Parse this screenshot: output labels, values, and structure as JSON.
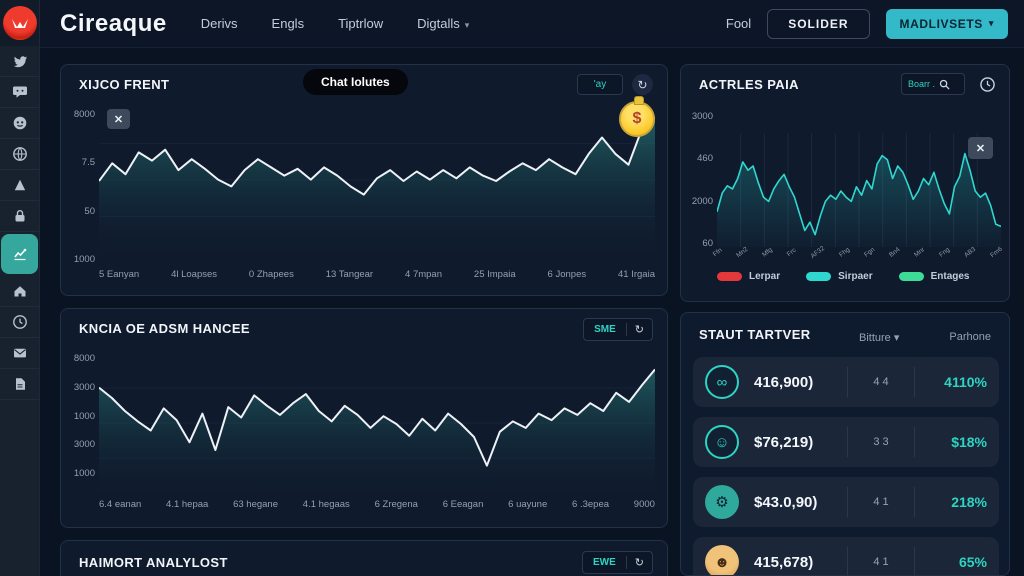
{
  "topbar": {
    "logo": "Cireaque",
    "nav": [
      "Derivs",
      "Engls",
      "Tiptrlow",
      "Digtalls"
    ],
    "caret": "▾",
    "right_text": "Fool",
    "outline_button": "SOLIDER",
    "primary_button": "MADLIVSETS"
  },
  "sidebar": {
    "items": [
      "twitter",
      "chat",
      "discord",
      "community",
      "triangle",
      "lock",
      "charts",
      "home",
      "clock",
      "mail",
      "report"
    ]
  },
  "panels": {
    "price": {
      "title": "XIJCO FRENT",
      "tooltip": "Chat Iolutes",
      "range": "'ay",
      "refresh": "↻",
      "close": "✕",
      "badge": "$"
    },
    "active": {
      "title": "ACTRLES PAIA",
      "search": "Boarr .",
      "close": "✕",
      "legend": [
        {
          "label": "Lerpar",
          "color": "#e5383b"
        },
        {
          "label": "Sirpaer",
          "color": "#2fd8cf"
        },
        {
          "label": "Entages",
          "color": "#3ddc97"
        }
      ]
    },
    "balance": {
      "title": "KNCIA OE ADSM HANCEE",
      "button": "SME",
      "refresh": "↻"
    },
    "stats": {
      "title": "STAUT TARTVER",
      "filter": "Bitture",
      "caret": "▾",
      "col": "Parhone",
      "rows": [
        {
          "value": "416,900)",
          "mid": "4 4",
          "change": "4110%",
          "icon": "infinity"
        },
        {
          "value": "$76,219)",
          "mid": "3 3",
          "change": "$18%",
          "icon": "face"
        },
        {
          "value": "$43.0,90)",
          "mid": "4 1",
          "change": "218%",
          "icon": "gear"
        },
        {
          "value": "415,678)",
          "mid": "4 1",
          "change": "65%",
          "icon": "avatar"
        }
      ],
      "row_icons": {
        "infinity": "∞",
        "face": "☺",
        "gear": "⚙",
        "avatar": "☻"
      }
    },
    "report": {
      "title": "HAIMORT ANALYLOST",
      "button": "EWE",
      "refresh": "↻"
    }
  },
  "chart_data": [
    {
      "type": "area",
      "title": "XIJCO FRENT",
      "values": [
        50,
        63,
        55,
        71,
        65,
        73,
        58,
        66,
        59,
        51,
        46,
        58,
        66,
        60,
        54,
        59,
        51,
        60,
        54,
        46,
        40,
        52,
        58,
        50,
        57,
        51,
        58,
        52,
        60,
        54,
        50,
        57,
        63,
        58,
        66,
        60,
        55,
        70,
        82,
        70,
        62,
        88,
        97
      ],
      "ylim": [
        0,
        100
      ],
      "grid": "h",
      "y_ticks": [
        "8000",
        "7.5",
        "50",
        "1000"
      ],
      "x_ticks": [
        "5 Eanyan",
        "4l Loapses",
        "0 Zhapees",
        "13 Tangear",
        "4 7mpan",
        "25 Impaia",
        "6 Jonpes",
        "41 Irgaia"
      ],
      "line_color": "#eef2f7",
      "fill_top": "rgba(45,150,140,0.55)",
      "fill_bottom": "rgba(16,40,56,0.03)"
    },
    {
      "type": "area",
      "title": "ACTRLES PAIA",
      "values": [
        30,
        48,
        55,
        52,
        62,
        78,
        70,
        74,
        58,
        44,
        40,
        52,
        60,
        66,
        54,
        44,
        28,
        12,
        20,
        8,
        26,
        40,
        46,
        42,
        50,
        44,
        40,
        54,
        46,
        60,
        52,
        76,
        84,
        80,
        62,
        74,
        68,
        56,
        42,
        50,
        62,
        56,
        68,
        52,
        38,
        28,
        54,
        64,
        86,
        70,
        50,
        44,
        48,
        36,
        18,
        16
      ],
      "ylim": [
        0,
        100
      ],
      "grid": "v",
      "y_ticks": [
        "3000",
        "460",
        "2000",
        "60"
      ],
      "x_ticks": [
        "Ffn",
        "Mn2",
        "Mfg",
        "Frc",
        "AF32",
        "Fhg",
        "Fgn",
        "Bn4",
        "Mnr",
        "Fng",
        "AB3",
        "Fm6"
      ],
      "line_color": "#2fd8cf",
      "fill_top": "rgba(45,216,207,0.25)",
      "fill_bottom": "rgba(45,216,207,0.02)"
    },
    {
      "type": "area",
      "title": "KNCIA OE ADSM HANCEE",
      "values": [
        78,
        70,
        60,
        52,
        45,
        62,
        53,
        36,
        58,
        30,
        63,
        55,
        72,
        64,
        57,
        66,
        73,
        60,
        52,
        64,
        57,
        47,
        56,
        50,
        41,
        54,
        45,
        58,
        50,
        40,
        18,
        44,
        52,
        47,
        58,
        53,
        62,
        57,
        66,
        60,
        74,
        67,
        80,
        92
      ],
      "ylim": [
        0,
        100
      ],
      "grid": "h",
      "y_ticks": [
        "8000",
        "3000",
        "1000",
        "3000",
        "1000"
      ],
      "x_ticks": [
        "6.4 eanan",
        "4.1 hepaa",
        "63 hegane",
        "4.1 hegaas",
        "6 Zregena",
        "6 Eeagan",
        "6 uayune",
        "6 .3epea",
        "9000"
      ],
      "line_color": "#eef2f7",
      "fill_top": "rgba(45,150,140,0.5)",
      "fill_bottom": "rgba(16,40,56,0.03)"
    }
  ],
  "colors": {
    "accent": "#2ed3c2",
    "primary_button_bg": "#33b9c8",
    "coin": "#fbc926",
    "legend_red": "#e5383b",
    "legend_cyan": "#2fd8cf",
    "legend_green": "#3ddc97"
  }
}
